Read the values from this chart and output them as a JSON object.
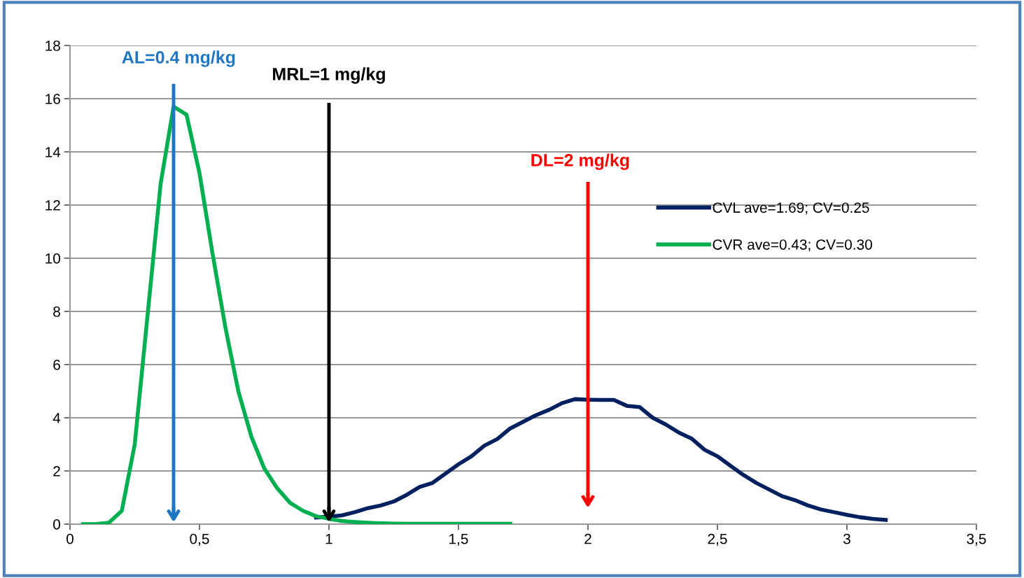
{
  "chart_data": {
    "type": "line",
    "series": [
      {
        "name": "CVL ave=1.69; CV=0.25",
        "color": "#002060",
        "x": [
          0.95,
          1.0,
          1.05,
          1.1,
          1.15,
          1.2,
          1.25,
          1.3,
          1.35,
          1.4,
          1.45,
          1.5,
          1.55,
          1.6,
          1.65,
          1.7,
          1.75,
          1.8,
          1.85,
          1.9,
          1.95,
          2.0,
          2.05,
          2.1,
          2.15,
          2.2,
          2.25,
          2.3,
          2.35,
          2.4,
          2.45,
          2.5,
          2.55,
          2.6,
          2.65,
          2.7,
          2.75,
          2.8,
          2.85,
          2.9,
          2.95,
          3.0,
          3.05,
          3.1,
          3.15
        ],
        "values": [
          0.25,
          0.28,
          0.33,
          0.45,
          0.6,
          0.7,
          0.85,
          1.1,
          1.4,
          1.55,
          1.9,
          2.25,
          2.55,
          2.95,
          3.2,
          3.6,
          3.85,
          4.1,
          4.3,
          4.55,
          4.7,
          4.68,
          4.67,
          4.67,
          4.45,
          4.4,
          4.0,
          3.75,
          3.45,
          3.22,
          2.8,
          2.55,
          2.2,
          1.85,
          1.55,
          1.3,
          1.05,
          0.9,
          0.7,
          0.55,
          0.45,
          0.35,
          0.26,
          0.2,
          0.16
        ]
      },
      {
        "name": "CVR ave=0.43; CV=0.30",
        "color": "#00b050",
        "x": [
          0.05,
          0.1,
          0.15,
          0.2,
          0.25,
          0.3,
          0.35,
          0.4,
          0.45,
          0.5,
          0.55,
          0.6,
          0.65,
          0.7,
          0.75,
          0.8,
          0.85,
          0.9,
          0.95,
          1.0,
          1.05,
          1.1,
          1.15,
          1.2,
          1.25,
          1.3,
          1.35,
          1.4,
          1.45,
          1.5,
          1.55,
          1.6,
          1.65,
          1.7
        ],
        "values": [
          0,
          0,
          0.05,
          0.5,
          3.0,
          7.9,
          12.8,
          15.7,
          15.4,
          13.2,
          10.2,
          7.4,
          5.0,
          3.3,
          2.1,
          1.35,
          0.8,
          0.5,
          0.3,
          0.2,
          0.12,
          0.08,
          0.05,
          0.03,
          0.02,
          0.01,
          0.01,
          0.01,
          0.01,
          0.01,
          0.01,
          0.01,
          0.01,
          0.01
        ]
      }
    ],
    "xlim": [
      0,
      3.5
    ],
    "xticks": [
      0,
      {
        "value": 0.5,
        "label": "0,5"
      },
      1,
      {
        "value": 1.5,
        "label": "1,5"
      },
      2,
      {
        "value": 2.5,
        "label": "2,5"
      },
      3,
      {
        "value": 3.5,
        "label": "3,5"
      }
    ],
    "ylim": [
      0,
      18
    ],
    "yticks": [
      0,
      2,
      4,
      6,
      8,
      10,
      12,
      14,
      16,
      18
    ],
    "grid": "y",
    "legend": "right",
    "marker": "none",
    "line_style": "solid",
    "ref_lines": [
      {
        "axis": "x",
        "value": 0.4,
        "label": "AL=0.4 mg/kg",
        "color": "#1f77c4"
      },
      {
        "axis": "x",
        "value": 1,
        "label": "MRL=1 mg/kg",
        "color": "#000000"
      },
      {
        "axis": "x",
        "value": 2,
        "label": "DL=2 mg/kg",
        "color": "#ff0000"
      }
    ]
  }
}
